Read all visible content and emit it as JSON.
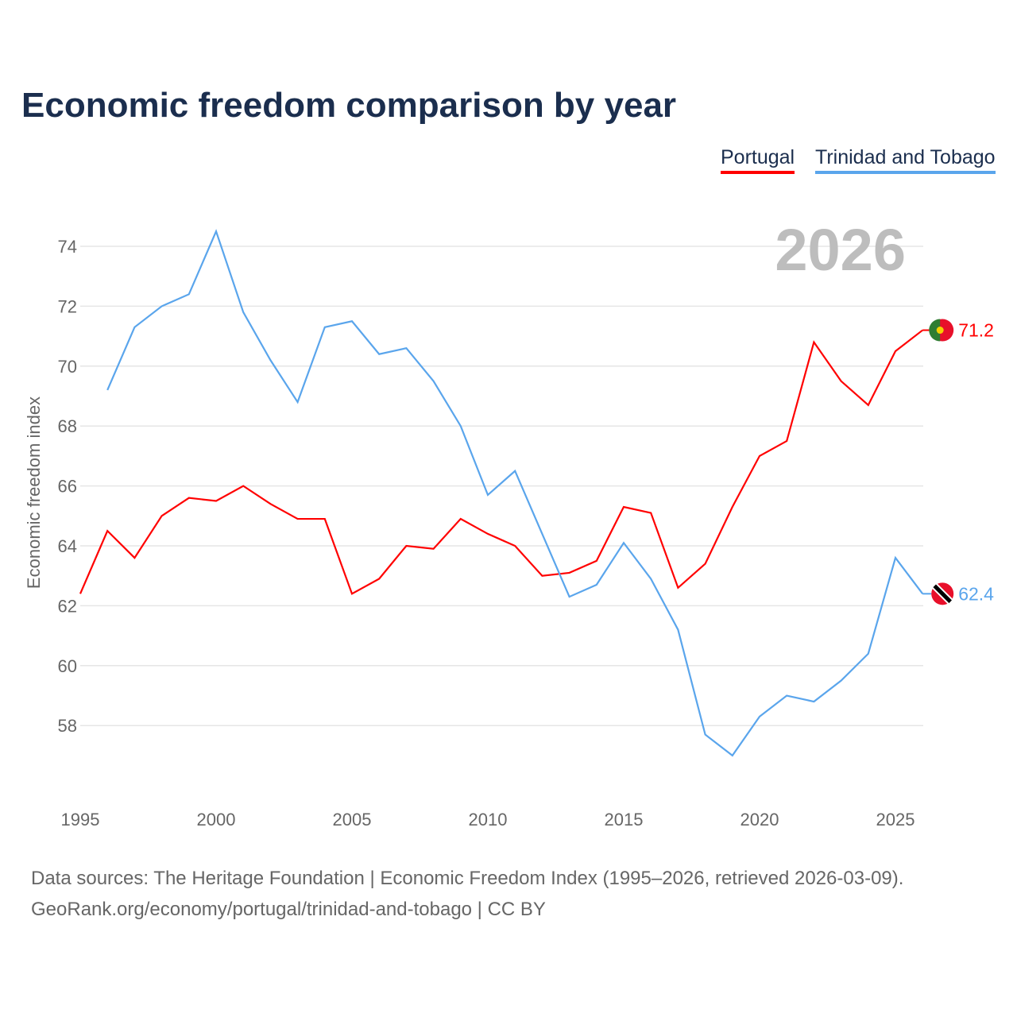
{
  "chart_data": {
    "type": "line",
    "title": "Economic freedom comparison by year",
    "ylabel": "Economic freedom index",
    "xlabel": "",
    "year_watermark": "2026",
    "xlim": [
      1995,
      2026
    ],
    "ylim": [
      56,
      75
    ],
    "x_ticks": [
      1995,
      2000,
      2005,
      2010,
      2015,
      2020,
      2025
    ],
    "y_ticks": [
      58,
      60,
      62,
      64,
      66,
      68,
      70,
      72,
      74
    ],
    "grid": true,
    "legend_position": "top-right",
    "series": [
      {
        "name": "Portugal",
        "color": "#ff0000",
        "end_label": "71.2",
        "x": [
          1995,
          1996,
          1997,
          1998,
          1999,
          2000,
          2001,
          2002,
          2003,
          2004,
          2005,
          2006,
          2007,
          2008,
          2009,
          2010,
          2011,
          2012,
          2013,
          2014,
          2015,
          2016,
          2017,
          2018,
          2019,
          2020,
          2021,
          2022,
          2023,
          2024,
          2025,
          2026
        ],
        "values": [
          62.4,
          64.5,
          63.6,
          65.0,
          65.6,
          65.5,
          66.0,
          65.4,
          64.9,
          64.9,
          62.4,
          62.9,
          64.0,
          63.9,
          64.9,
          64.4,
          64.0,
          63.0,
          63.1,
          63.5,
          65.3,
          65.1,
          62.6,
          63.4,
          65.3,
          67.0,
          67.5,
          70.8,
          69.5,
          68.7,
          70.5,
          71.2
        ]
      },
      {
        "name": "Trinidad and Tobago",
        "color": "#5aa5ec",
        "end_label": "62.4",
        "x": [
          1996,
          1997,
          1998,
          1999,
          2000,
          2001,
          2002,
          2003,
          2004,
          2005,
          2006,
          2007,
          2008,
          2009,
          2010,
          2011,
          2012,
          2013,
          2014,
          2015,
          2016,
          2017,
          2018,
          2019,
          2020,
          2021,
          2022,
          2023,
          2024,
          2025,
          2026
        ],
        "values": [
          69.2,
          71.3,
          72.0,
          72.4,
          74.5,
          71.8,
          70.2,
          68.8,
          71.3,
          71.5,
          70.4,
          70.6,
          69.5,
          68.0,
          65.7,
          66.5,
          64.4,
          62.3,
          62.7,
          64.1,
          62.9,
          61.2,
          57.7,
          57.0,
          58.3,
          59.0,
          58.8,
          59.5,
          60.4,
          63.6,
          62.4
        ]
      }
    ]
  },
  "footer": {
    "line1": "Data sources: The Heritage Foundation | Economic Freedom Index (1995–2026, retrieved 2026-03-09).",
    "line2": "GeoRank.org/economy/portugal/trinidad-and-tobago | CC BY"
  }
}
